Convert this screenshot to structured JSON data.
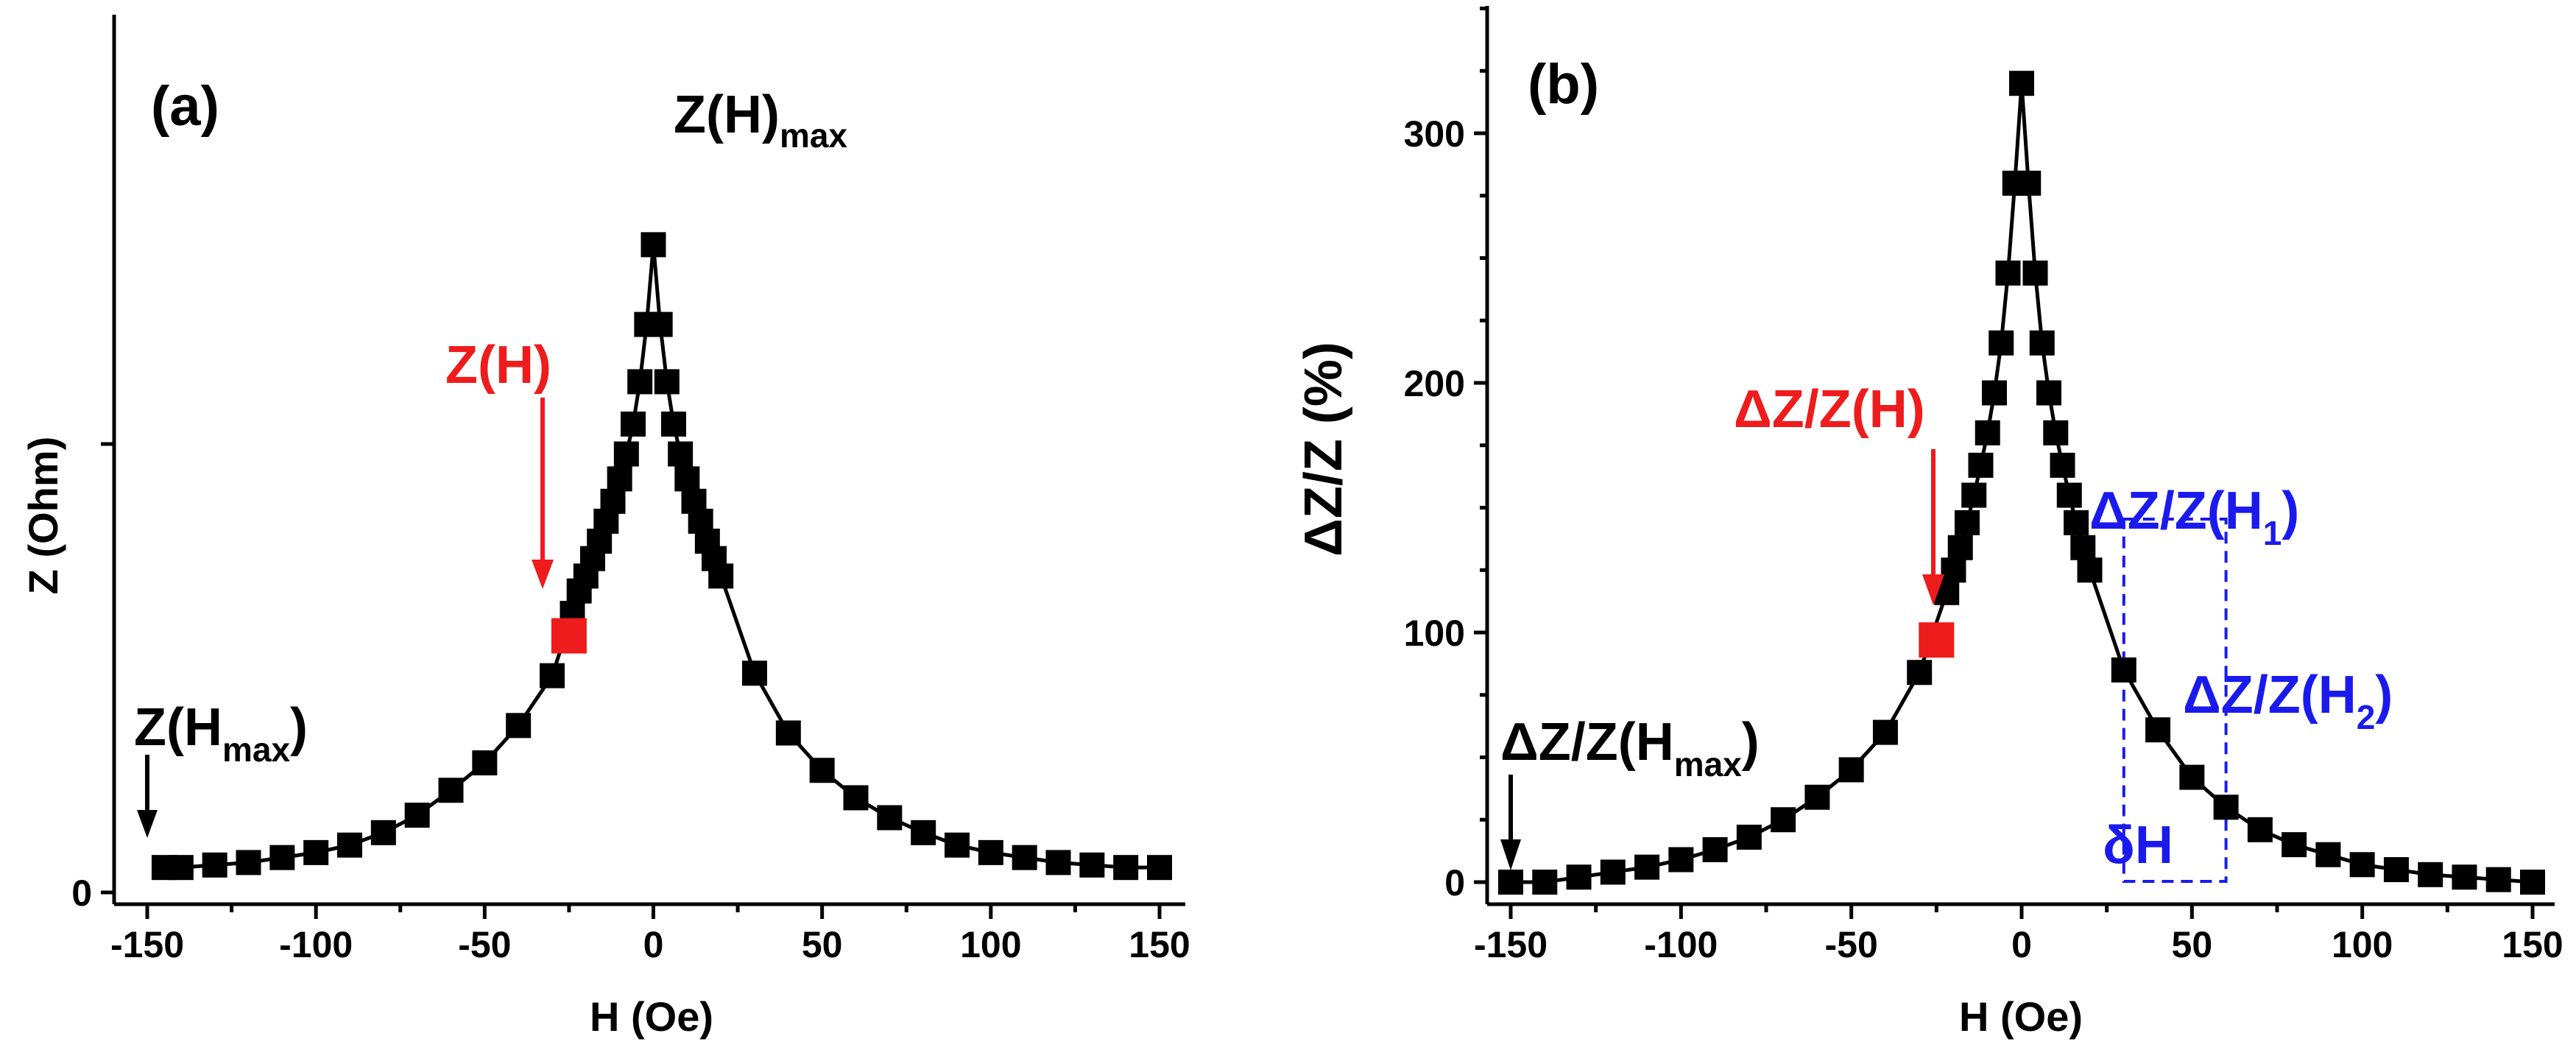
{
  "chart_data": [
    {
      "type": "scatter",
      "panel_label": "(a)",
      "xlabel": "H (Oe)",
      "ylabel": "Z (Ohm)",
      "xlim": [
        -155,
        155
      ],
      "ylim": [
        -10,
        330
      ],
      "xticks": [
        -150,
        -100,
        -50,
        0,
        50,
        100,
        150
      ],
      "xtick_labels": [
        "-150",
        "-100",
        "-50",
        "0",
        "50",
        "100",
        "150"
      ],
      "yticks": [
        0,
        180
      ],
      "ytick_labels": [
        "0",
        ""
      ],
      "series": [
        {
          "name": "Z(H)",
          "color": "#000000",
          "marker": "square",
          "x": [
            -145,
            -140,
            -130,
            -120,
            -110,
            -100,
            -90,
            -80,
            -70,
            -60,
            -50,
            -40,
            -30,
            -24,
            -22,
            -20,
            -18,
            -16,
            -14,
            -12,
            -10,
            -8,
            -6,
            -4,
            -2,
            0,
            2,
            4,
            6,
            8,
            10,
            12,
            14,
            16,
            18,
            20,
            30,
            40,
            50,
            60,
            70,
            80,
            90,
            100,
            110,
            120,
            130,
            140,
            150
          ],
          "y": [
            10,
            10,
            11,
            12,
            14,
            16,
            19,
            24,
            31,
            41,
            52,
            67,
            87,
            112,
            121,
            127,
            134,
            141,
            149,
            157,
            166,
            176,
            188,
            205,
            228,
            260,
            228,
            205,
            188,
            176,
            166,
            157,
            149,
            141,
            134,
            127,
            88,
            64,
            49,
            38,
            30,
            24,
            19,
            16,
            14,
            12,
            11,
            10,
            10
          ]
        }
      ],
      "highlight": {
        "name": "Z(H)",
        "x": -25,
        "y": 103,
        "color": "#ee1c1c"
      },
      "annotations": {
        "zmax": {
          "main": "Z(H)",
          "sub": "max"
        },
        "zh": {
          "text": "Z(H)",
          "color": "#ee1c1c"
        },
        "zhmax": {
          "main": "Z(H",
          "sub": "max",
          "close": ")"
        }
      }
    },
    {
      "type": "scatter",
      "panel_label": "(b)",
      "xlabel": "H (Oe)",
      "ylabel": "ΔZ/Z (%)",
      "xlim": [
        -158,
        158
      ],
      "ylim": [
        -8,
        350
      ],
      "xticks": [
        -150,
        -100,
        -50,
        0,
        50,
        100,
        150
      ],
      "xtick_labels": [
        "-150",
        "-100",
        "-50",
        "0",
        "50",
        "100",
        "150"
      ],
      "yticks": [
        0,
        100,
        200,
        300
      ],
      "ytick_labels": [
        "0",
        "100",
        "200",
        "300"
      ],
      "series": [
        {
          "name": "ΔZ/Z(H)",
          "color": "#000000",
          "marker": "square",
          "x": [
            -150,
            -140,
            -130,
            -120,
            -110,
            -100,
            -90,
            -80,
            -70,
            -60,
            -50,
            -40,
            -30,
            -22,
            -20,
            -18,
            -16,
            -14,
            -12,
            -10,
            -8,
            -6,
            -4,
            -2,
            0,
            2,
            4,
            6,
            8,
            10,
            12,
            14,
            16,
            18,
            20,
            30,
            40,
            50,
            60,
            70,
            80,
            90,
            100,
            110,
            120,
            130,
            140,
            150
          ],
          "y": [
            0,
            0,
            2,
            4,
            6,
            9,
            13,
            18,
            25,
            34,
            45,
            60,
            84,
            116,
            125,
            134,
            144,
            155,
            167,
            180,
            196,
            216,
            244,
            280,
            320,
            280,
            244,
            216,
            196,
            180,
            167,
            155,
            144,
            134,
            125,
            85,
            61,
            42,
            30,
            21,
            15,
            11,
            7,
            5,
            3,
            2,
            1,
            0
          ]
        }
      ],
      "highlight": {
        "name": "ΔZ/Z(H)",
        "x": -25,
        "y": 97,
        "color": "#ee1c1c"
      },
      "annotations": {
        "dzh": {
          "text": "ΔZ/Z(H)",
          "color": "#ee1c1c"
        },
        "dzh1": {
          "main": "ΔZ/Z(H",
          "sub": "1",
          "close": ")",
          "color": "#1a1aee"
        },
        "dzh2": {
          "main": "ΔZ/Z(H",
          "sub": "2",
          "close": ")",
          "color": "#1a1aee"
        },
        "dzhmax": {
          "main": "ΔZ/Z(H",
          "sub": "max",
          "close": ")"
        },
        "deltaH": {
          "text": "δH",
          "color": "#1a1aee",
          "h1": 30,
          "h2": 60
        }
      }
    }
  ]
}
